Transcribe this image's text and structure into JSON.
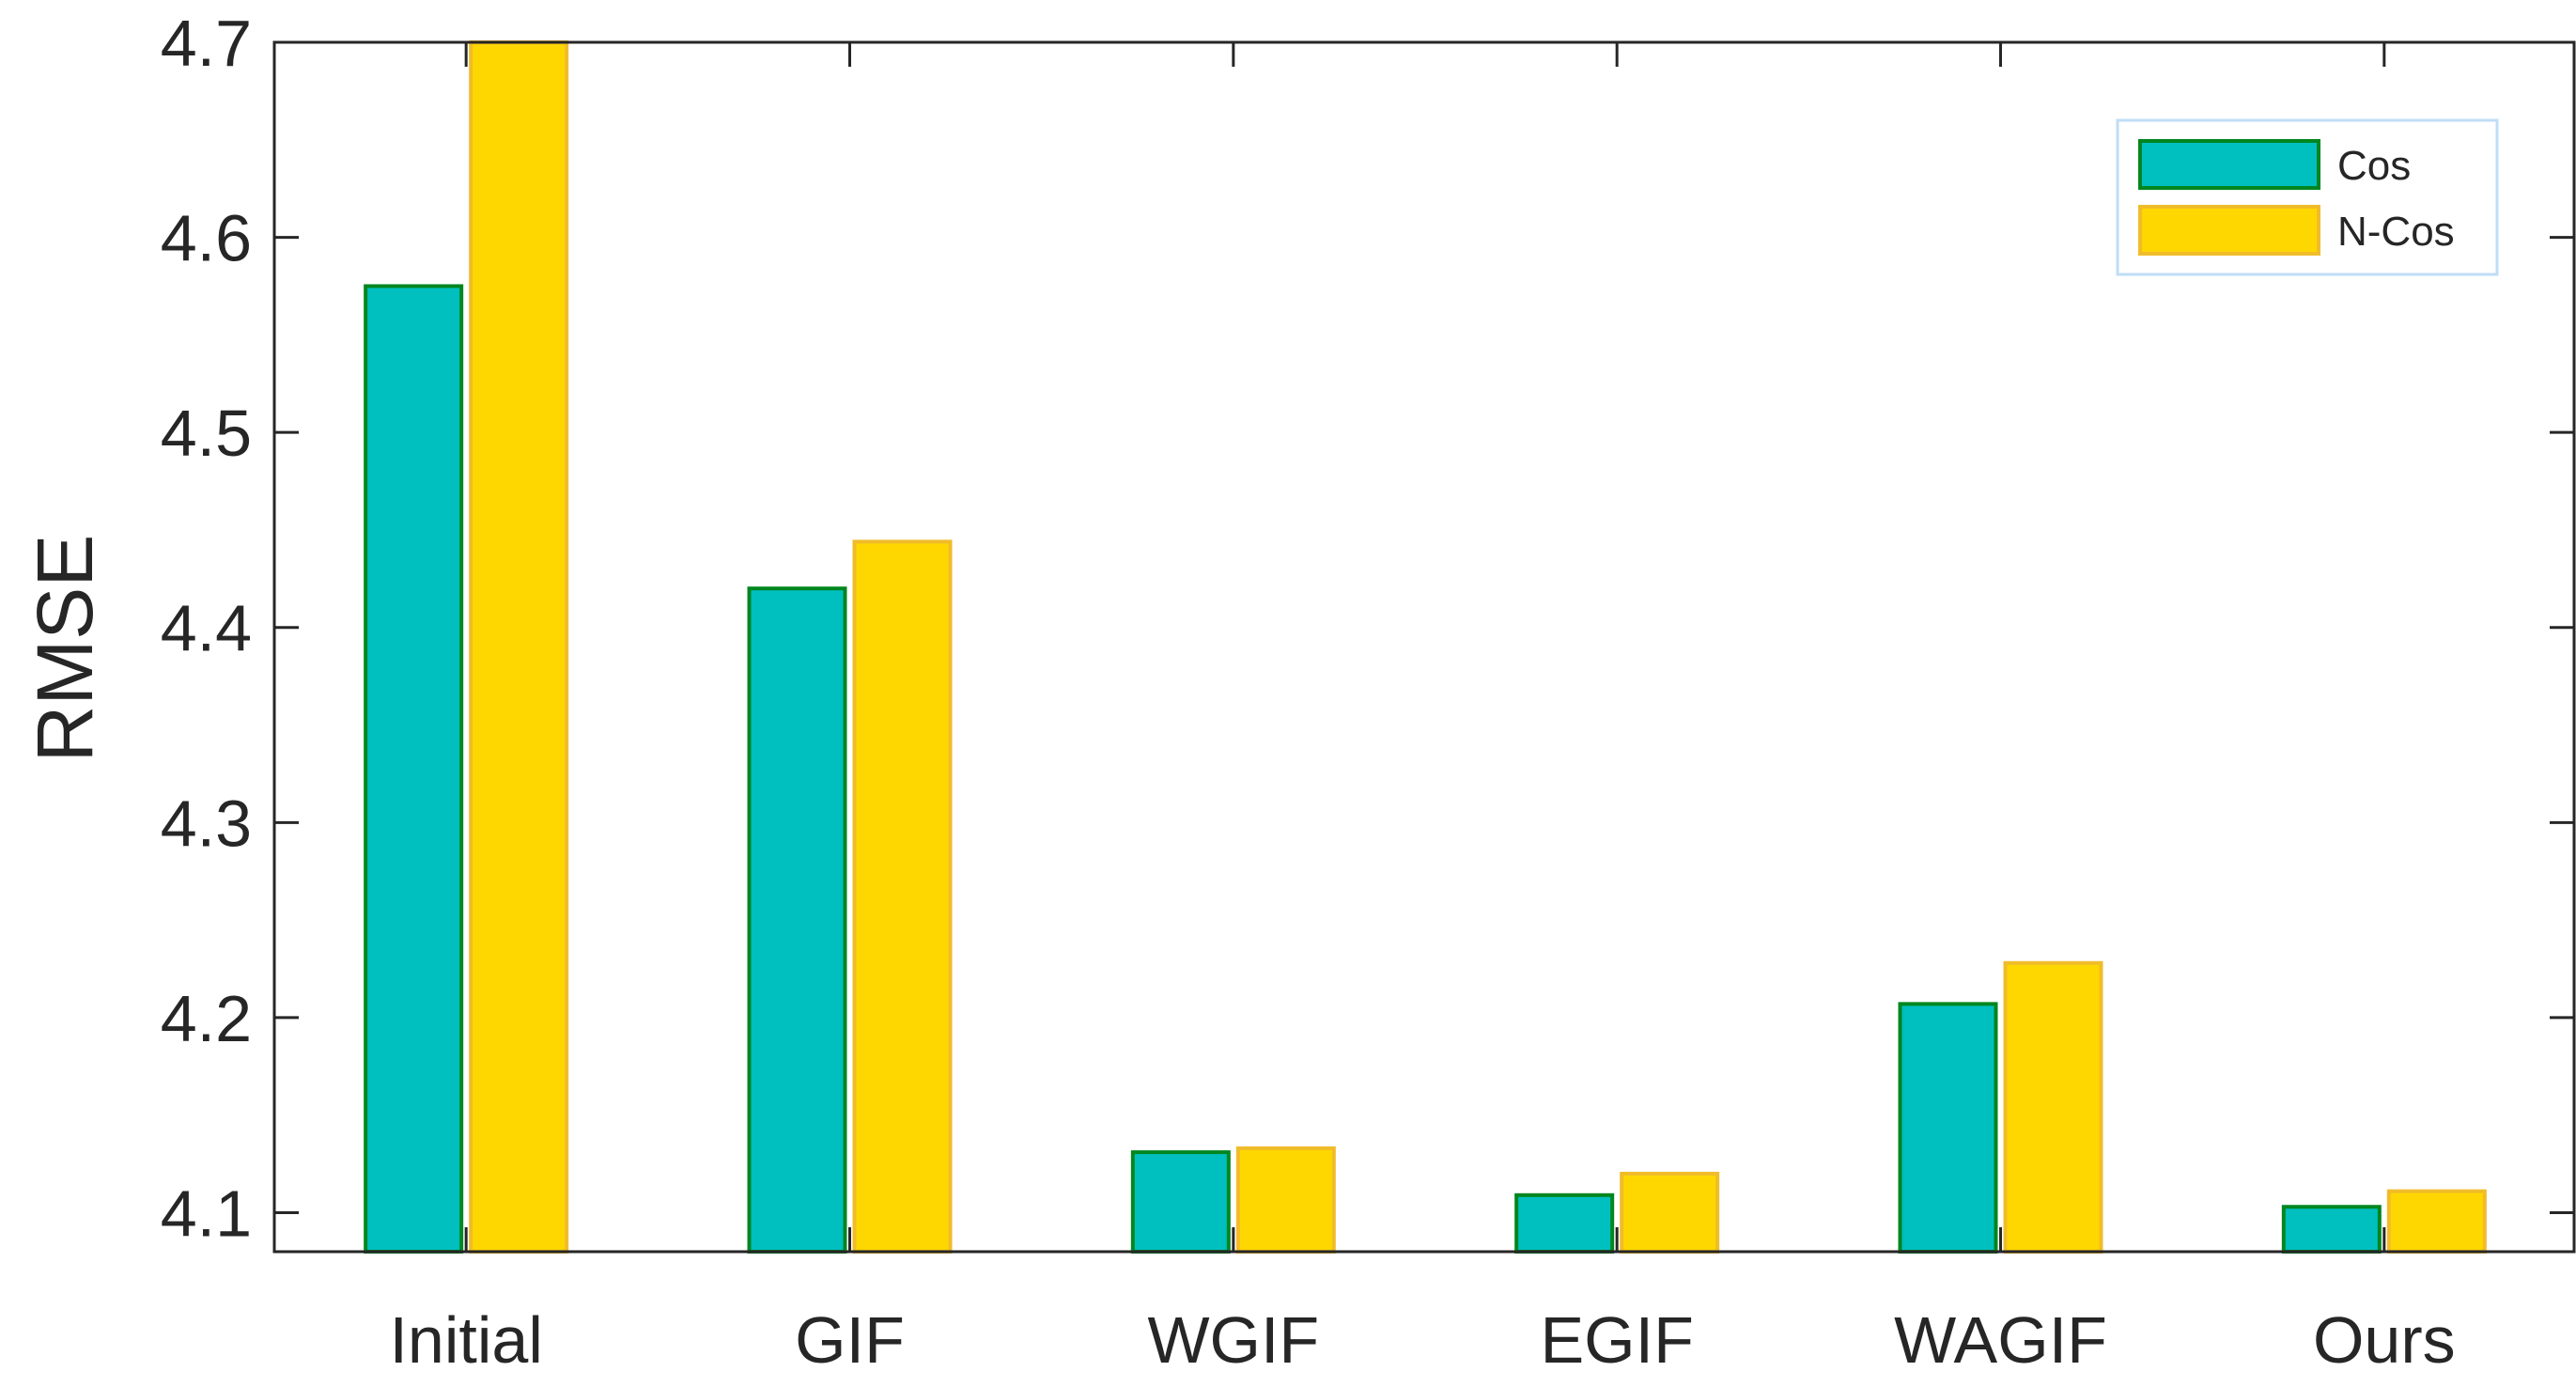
{
  "chart_data": {
    "type": "bar",
    "categories": [
      "Initial",
      "GIF",
      "WGIF",
      "EGIF",
      "WAGIF",
      "Ours"
    ],
    "series": [
      {
        "name": "Cos",
        "values": [
          4.575,
          4.42,
          4.131,
          4.109,
          4.207,
          4.103
        ]
      },
      {
        "name": "N-Cos",
        "values": [
          4.7,
          4.444,
          4.133,
          4.12,
          4.228,
          4.111
        ]
      }
    ],
    "title": "",
    "xlabel": "",
    "ylabel": "RMSE",
    "ylim": [
      4.08,
      4.7
    ],
    "yticks": [
      "4.1",
      "4.2",
      "4.3",
      "4.4",
      "4.5",
      "4.6",
      "4.7"
    ],
    "grid": false,
    "legend": {
      "position": "top-right"
    },
    "colors": {
      "Cos": {
        "fill": "#00BFBF",
        "stroke": "#00861F"
      },
      "N-Cos": {
        "fill": "#FFD700",
        "stroke": "#F0BC2A"
      },
      "axis": "#262626",
      "legend_border": "#BFDDF5"
    }
  }
}
